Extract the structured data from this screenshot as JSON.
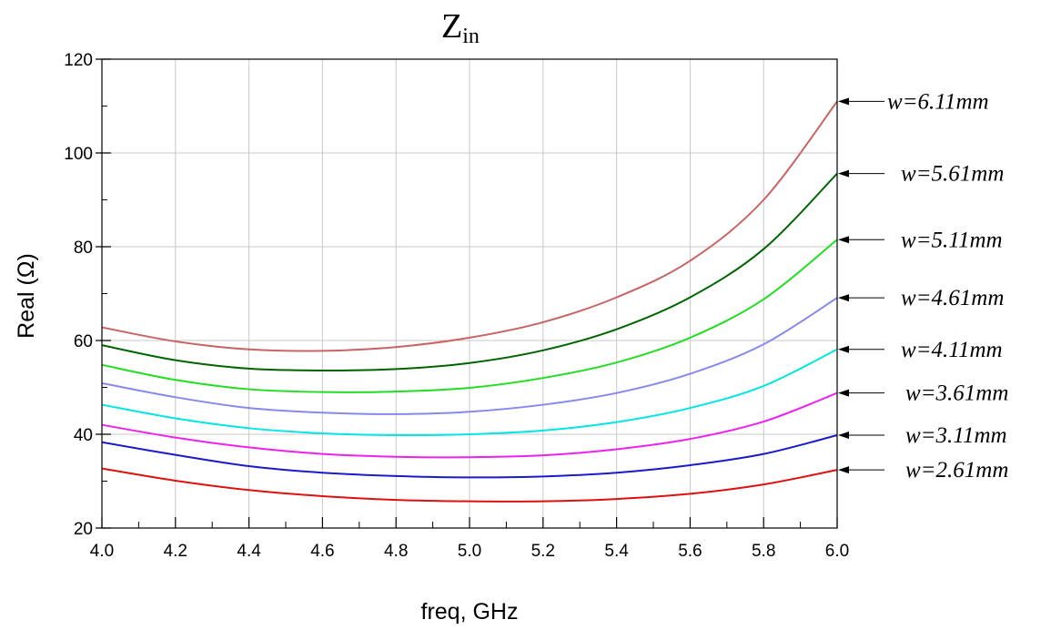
{
  "chart_data": {
    "type": "line",
    "title": {
      "main": "Z",
      "subscript": "in"
    },
    "xlabel": "freq, GHz",
    "ylabel": "Real (Ω)",
    "xlim": [
      4.0,
      6.0
    ],
    "ylim": [
      20,
      120
    ],
    "x_ticks": [
      "4.0",
      "4.2",
      "4.4",
      "4.6",
      "4.8",
      "5.0",
      "5.2",
      "5.4",
      "5.6",
      "5.8",
      "6.0"
    ],
    "y_ticks": [
      "20",
      "40",
      "60",
      "80",
      "100",
      "120"
    ],
    "grid": true,
    "x": [
      4.0,
      4.2,
      4.4,
      4.6,
      4.8,
      5.0,
      5.2,
      5.4,
      5.6,
      5.8,
      6.0
    ],
    "series": [
      {
        "name": "w=6.11mm",
        "color": "#c86464",
        "values": [
          62.8,
          59.8,
          58.1,
          57.8,
          58.6,
          60.6,
          63.9,
          69.2,
          77.0,
          90.0,
          111.0
        ]
      },
      {
        "name": "w=5.61mm",
        "color": "#006400",
        "values": [
          59.0,
          55.8,
          54.0,
          53.6,
          53.9,
          55.2,
          57.9,
          62.4,
          69.2,
          79.5,
          95.6
        ]
      },
      {
        "name": "w=5.11mm",
        "color": "#22dd22",
        "values": [
          54.8,
          51.6,
          49.6,
          49.0,
          49.1,
          49.9,
          52.0,
          55.3,
          60.6,
          68.8,
          81.5
        ]
      },
      {
        "name": "w=4.61mm",
        "color": "#8888ee",
        "values": [
          50.9,
          47.9,
          45.6,
          44.6,
          44.3,
          44.8,
          46.3,
          48.8,
          52.9,
          59.2,
          69.1
        ]
      },
      {
        "name": "w=4.11mm",
        "color": "#00e5e5",
        "values": [
          46.3,
          43.4,
          41.3,
          40.2,
          39.8,
          40.0,
          40.8,
          42.6,
          45.6,
          50.3,
          58.1
        ]
      },
      {
        "name": "w=3.61mm",
        "color": "#ee22ee",
        "values": [
          42.0,
          39.3,
          37.2,
          35.8,
          35.2,
          35.1,
          35.5,
          36.8,
          39.0,
          42.7,
          48.8
        ]
      },
      {
        "name": "w=3.11mm",
        "color": "#1a1acc",
        "values": [
          38.3,
          35.6,
          33.2,
          31.8,
          31.1,
          30.8,
          31.0,
          31.8,
          33.4,
          35.8,
          39.8
        ]
      },
      {
        "name": "w=2.61mm",
        "color": "#e01010",
        "values": [
          32.7,
          30.1,
          28.1,
          26.8,
          26.0,
          25.7,
          25.7,
          26.2,
          27.3,
          29.3,
          32.4
        ]
      }
    ]
  }
}
